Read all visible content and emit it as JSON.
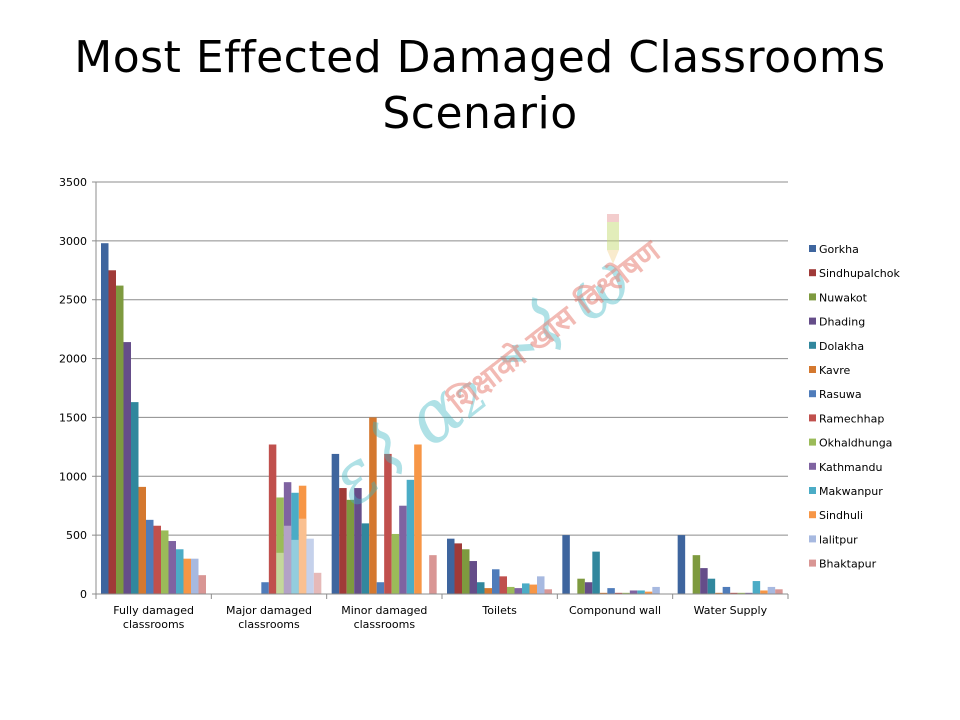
{
  "slide": {
    "title_line1": "Most Effected Damaged Classrooms",
    "title_line2": "Scenario"
  },
  "chart_data": {
    "type": "bar",
    "ylim": [
      0,
      3500
    ],
    "yticks": [
      0,
      500,
      1000,
      1500,
      2000,
      2500,
      3000,
      3500
    ],
    "grid": true,
    "legend_position": "right",
    "categories": [
      [
        "Fully damaged",
        "classrooms"
      ],
      [
        "Major damaged",
        "classrooms"
      ],
      [
        "Minor damaged",
        "classrooms"
      ],
      [
        "Toilets"
      ],
      [
        "Componund wall"
      ],
      [
        "Water Supply"
      ]
    ],
    "series": [
      {
        "name": "Gorkha",
        "color": "#3E659E",
        "values": [
          2980,
          0,
          1190,
          470,
          500,
          500
        ]
      },
      {
        "name": "Sindhupalchok",
        "color": "#A03A38",
        "values": [
          2750,
          0,
          900,
          430,
          0,
          0
        ]
      },
      {
        "name": "Nuwakot",
        "color": "#7E9A3F",
        "values": [
          2620,
          0,
          800,
          380,
          130,
          330
        ]
      },
      {
        "name": "Dhading",
        "color": "#654D89",
        "values": [
          2140,
          0,
          900,
          280,
          100,
          220
        ]
      },
      {
        "name": "Dolakha",
        "color": "#31879D",
        "values": [
          1630,
          0,
          600,
          100,
          360,
          130
        ]
      },
      {
        "name": "Kavre",
        "color": "#D4782F",
        "values": [
          910,
          0,
          1500,
          50,
          10,
          10
        ]
      },
      {
        "name": "Rasuwa",
        "color": "#4F7CBA",
        "values": [
          630,
          100,
          100,
          210,
          50,
          60
        ]
      },
      {
        "name": "Ramechhap",
        "color": "#C0504D",
        "values": [
          580,
          1270,
          1190,
          150,
          10,
          10
        ]
      },
      {
        "name": "Okhaldhunga",
        "color": "#9BBB59",
        "values": [
          540,
          820,
          510,
          60,
          10,
          10
        ]
      },
      {
        "name": "Kathmandu",
        "color": "#7F63A1",
        "values": [
          450,
          950,
          750,
          50,
          30,
          10
        ]
      },
      {
        "name": "Makwanpur",
        "color": "#4BACC6",
        "values": [
          380,
          860,
          970,
          90,
          30,
          110
        ]
      },
      {
        "name": "Sindhuli",
        "color": "#F79646",
        "values": [
          300,
          920,
          1270,
          80,
          20,
          30
        ]
      },
      {
        "name": "lalitpur",
        "color": "#A7B9E0",
        "values": [
          300,
          0,
          0,
          150,
          60,
          60
        ]
      },
      {
        "name": "Bhaktapur",
        "color": "#D99694",
        "values": [
          160,
          0,
          330,
          40,
          0,
          40
        ]
      }
    ],
    "overlay_bars": [
      {
        "category": 1,
        "offset": 8,
        "value": 350,
        "color": "#C4D79B"
      },
      {
        "category": 1,
        "offset": 9,
        "value": 580,
        "color": "#B3A2C7"
      },
      {
        "category": 1,
        "offset": 10,
        "value": 460,
        "color": "#93CDDD"
      },
      {
        "category": 1,
        "offset": 11,
        "value": 640,
        "color": "#FAC090"
      },
      {
        "category": 1,
        "offset": 12,
        "value": 470,
        "color": "#C5D1EB"
      },
      {
        "category": 1,
        "offset": 13,
        "value": 180,
        "color": "#E6B9B8"
      }
    ]
  },
  "watermark": {
    "brand": "Edukhabar.com",
    "tagline": "शिक्षाको खास विश्लेषण",
    "icon": "pencil-icon"
  }
}
